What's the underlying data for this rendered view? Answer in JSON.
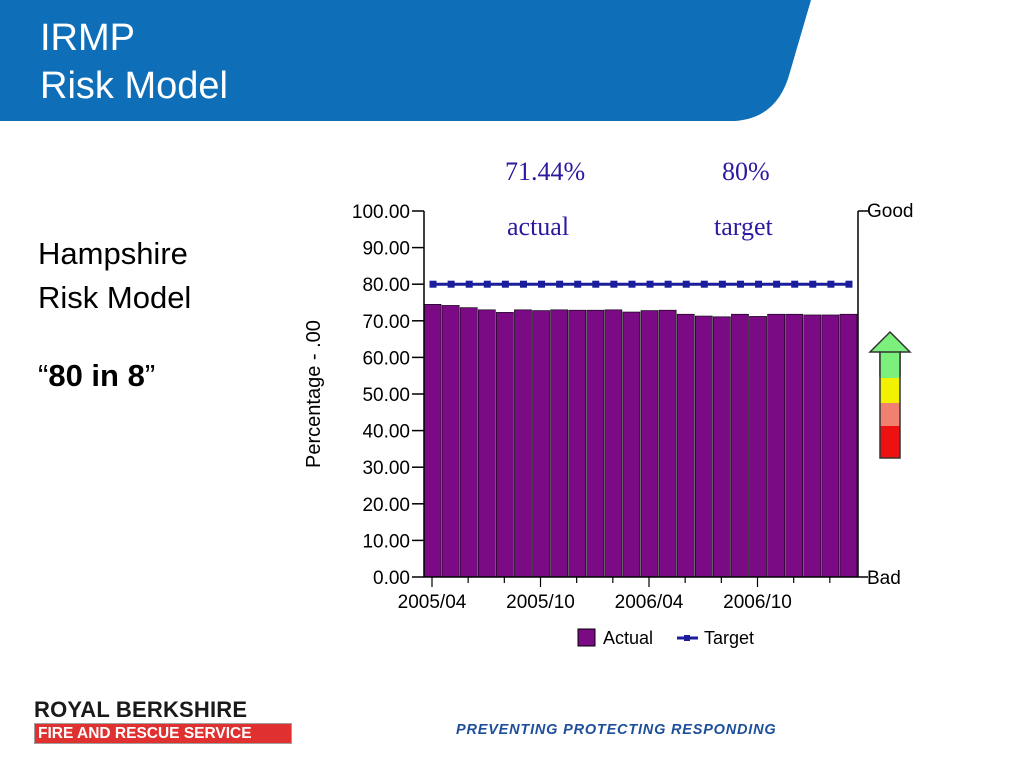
{
  "slide": {
    "title_line1": "IRMP",
    "title_line2": "Risk Model",
    "left_line1": "Hampshire",
    "left_line2": "Risk Model",
    "quote_open": "“",
    "quote_bold": "80 in 8",
    "quote_close": "”",
    "actual_pct": "71.44%",
    "actual_label": "actual",
    "target_pct": "80%",
    "target_label": "target",
    "logo_top": "ROYAL BERKSHIRE",
    "logo_bottom": "FIRE AND RESCUE SERVICE",
    "tagline": "PREVENTING PROTECTING RESPONDING",
    "header_color": "#0e6fb8"
  },
  "chart_data": {
    "type": "bar",
    "ylabel": "Percentage - .00",
    "ylim": [
      0,
      100
    ],
    "y_ticks": [
      "100.00",
      "90.00",
      "80.00",
      "70.00",
      "60.00",
      "50.00",
      "40.00",
      "30.00",
      "20.00",
      "10.00",
      "0.00"
    ],
    "x_tick_labels": [
      "2005/04",
      "2005/10",
      "2006/04",
      "2006/10"
    ],
    "right_labels": {
      "top": "Good",
      "bottom": "Bad"
    },
    "series": [
      {
        "name": "Actual",
        "color": "#7b0a85",
        "values": [
          74.5,
          74.2,
          73.6,
          73.0,
          72.3,
          73.0,
          72.8,
          73.0,
          72.9,
          72.9,
          73.0,
          72.4,
          72.8,
          72.9,
          71.8,
          71.3,
          71.1,
          71.8,
          71.2,
          71.8,
          71.8,
          71.6,
          71.6,
          71.8
        ]
      },
      {
        "name": "Target",
        "color": "#1b1e9c",
        "values": [
          80,
          80,
          80,
          80,
          80,
          80,
          80,
          80,
          80,
          80,
          80,
          80,
          80,
          80,
          80,
          80,
          80,
          80,
          80,
          80,
          80,
          80,
          80,
          80
        ]
      }
    ],
    "legend": "bottom",
    "grid": false
  }
}
